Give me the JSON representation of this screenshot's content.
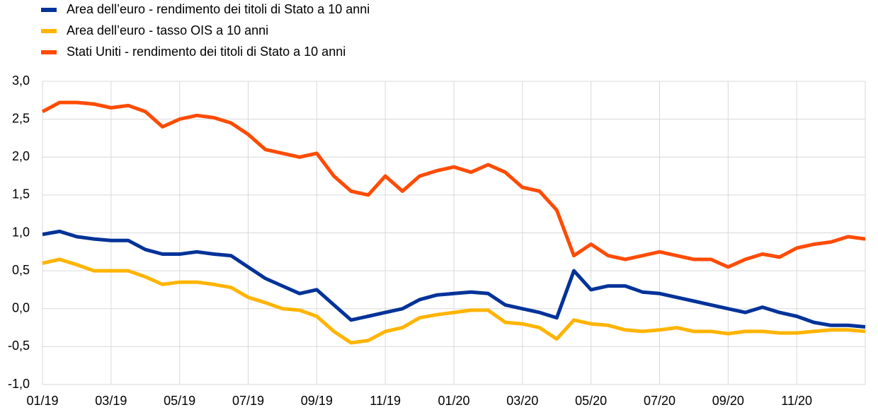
{
  "chart_data": {
    "type": "line",
    "x": [
      0,
      0.5,
      1,
      1.5,
      2,
      2.5,
      3,
      3.5,
      4,
      4.5,
      5,
      5.5,
      6,
      6.5,
      7,
      7.5,
      8,
      8.5,
      9,
      9.5,
      10,
      10.5,
      11,
      11.5,
      12,
      12.5,
      13,
      13.5,
      14,
      14.5,
      15,
      15.5,
      16,
      16.5,
      17,
      17.5,
      18,
      18.5,
      19,
      19.5,
      20,
      20.5,
      21,
      21.5,
      22,
      22.5,
      23,
      23.5,
      24
    ],
    "series": [
      {
        "name": "Area dell’euro - rendimento dei titoli di Stato a 10 anni",
        "color": "#003299",
        "values": [
          0.98,
          1.02,
          0.95,
          0.92,
          0.9,
          0.9,
          0.78,
          0.72,
          0.72,
          0.75,
          0.72,
          0.7,
          0.55,
          0.4,
          0.3,
          0.2,
          0.25,
          0.05,
          -0.15,
          -0.1,
          -0.05,
          0.0,
          0.12,
          0.18,
          0.2,
          0.22,
          0.2,
          0.05,
          0.0,
          -0.05,
          -0.12,
          0.5,
          0.25,
          0.3,
          0.3,
          0.22,
          0.2,
          0.15,
          0.1,
          0.05,
          0.0,
          -0.05,
          0.02,
          -0.05,
          -0.1,
          -0.18,
          -0.22,
          -0.22,
          -0.24
        ]
      },
      {
        "name": "Area dell’euro - tasso OIS a 10 anni",
        "color": "#ffb400",
        "values": [
          0.6,
          0.65,
          0.58,
          0.5,
          0.5,
          0.5,
          0.42,
          0.32,
          0.35,
          0.35,
          0.32,
          0.28,
          0.15,
          0.08,
          0.0,
          -0.02,
          -0.1,
          -0.3,
          -0.45,
          -0.42,
          -0.3,
          -0.25,
          -0.12,
          -0.08,
          -0.05,
          -0.02,
          -0.02,
          -0.18,
          -0.2,
          -0.25,
          -0.4,
          -0.15,
          -0.2,
          -0.22,
          -0.28,
          -0.3,
          -0.28,
          -0.25,
          -0.3,
          -0.3,
          -0.33,
          -0.3,
          -0.3,
          -0.32,
          -0.32,
          -0.3,
          -0.28,
          -0.28,
          -0.3
        ]
      },
      {
        "name": "Stati Uniti - rendimento dei titoli di Stato a 10 anni",
        "color": "#ff4b00",
        "values": [
          2.6,
          2.72,
          2.72,
          2.7,
          2.65,
          2.68,
          2.6,
          2.4,
          2.5,
          2.55,
          2.52,
          2.45,
          2.3,
          2.1,
          2.05,
          2.0,
          2.05,
          1.75,
          1.55,
          1.5,
          1.75,
          1.55,
          1.75,
          1.82,
          1.87,
          1.8,
          1.9,
          1.8,
          1.6,
          1.55,
          1.3,
          0.7,
          0.85,
          0.7,
          0.65,
          0.7,
          0.75,
          0.7,
          0.65,
          0.65,
          0.55,
          0.65,
          0.72,
          0.68,
          0.8,
          0.85,
          0.88,
          0.95,
          0.92
        ]
      }
    ],
    "xlim": [
      0,
      24
    ],
    "xticks": [
      {
        "value": 0,
        "label": "01/19"
      },
      {
        "value": 2,
        "label": "03/19"
      },
      {
        "value": 4,
        "label": "05/19"
      },
      {
        "value": 6,
        "label": "07/19"
      },
      {
        "value": 8,
        "label": "09/19"
      },
      {
        "value": 10,
        "label": "11/19"
      },
      {
        "value": 12,
        "label": "01/20"
      },
      {
        "value": 14,
        "label": "03/20"
      },
      {
        "value": 16,
        "label": "05/20"
      },
      {
        "value": 18,
        "label": "07/20"
      },
      {
        "value": 20,
        "label": "09/20"
      },
      {
        "value": 22,
        "label": "11/20"
      }
    ],
    "ylim": [
      -1,
      3
    ],
    "yticks": [
      {
        "value": 3,
        "label": "3,0"
      },
      {
        "value": 2.5,
        "label": "2,5"
      },
      {
        "value": 2,
        "label": "2,0"
      },
      {
        "value": 1.5,
        "label": "1,5"
      },
      {
        "value": 1,
        "label": "1,0"
      },
      {
        "value": 0.5,
        "label": "0,5"
      },
      {
        "value": 0,
        "label": "0,0"
      },
      {
        "value": -0.5,
        "label": "-0,5"
      },
      {
        "value": -1,
        "label": "-1,0"
      }
    ],
    "grid": true
  }
}
